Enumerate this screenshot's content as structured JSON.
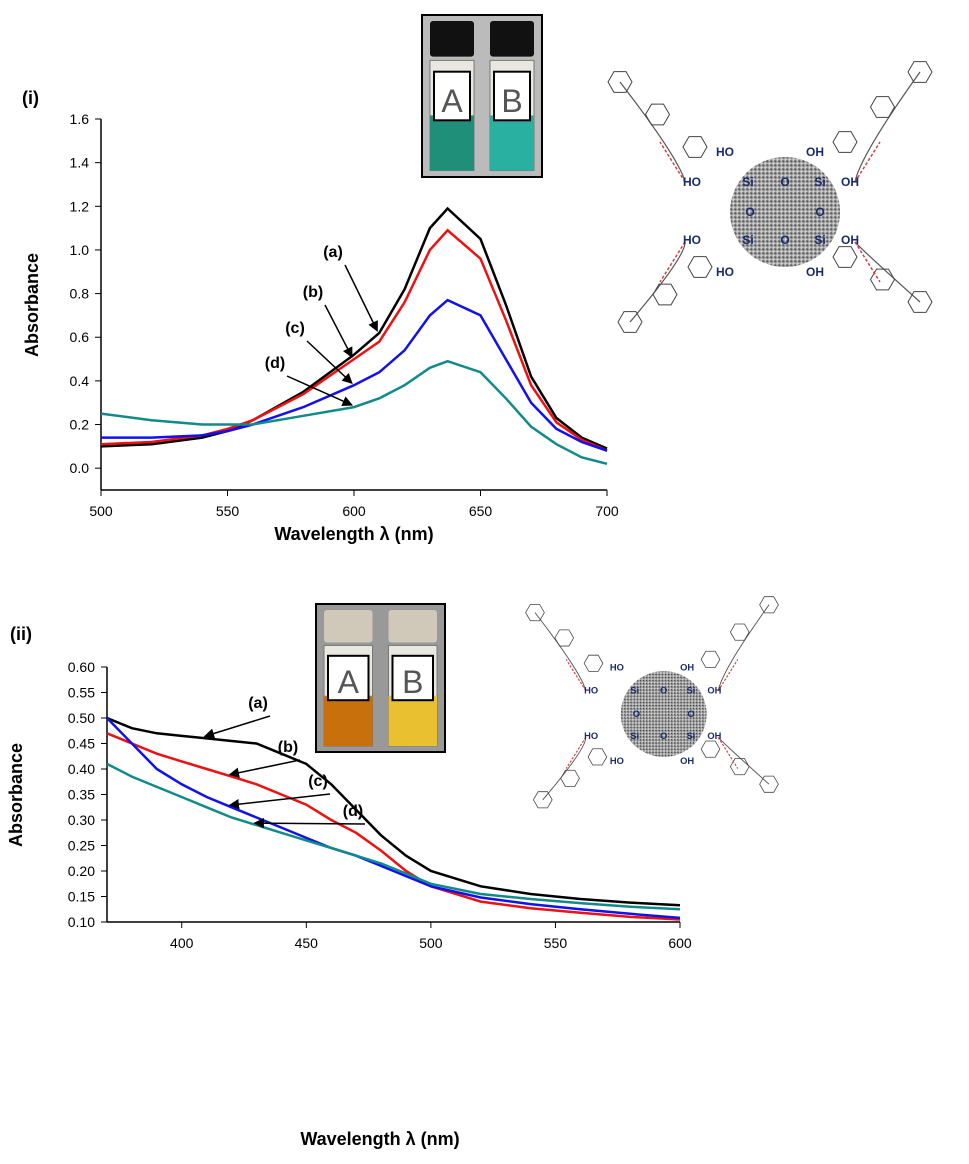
{
  "chart_data": [
    {
      "type": "line",
      "panel_label": "(i)",
      "xlabel": "Wavelength λ (nm)",
      "ylabel": "Absorbance",
      "x": [
        500,
        520,
        540,
        550,
        560,
        580,
        600,
        610,
        620,
        630,
        637,
        650,
        660,
        670,
        680,
        690,
        700
      ],
      "series": [
        {
          "name": "(a)",
          "color": "#000000",
          "values": [
            0.1,
            0.11,
            0.14,
            0.17,
            0.22,
            0.35,
            0.52,
            0.62,
            0.82,
            1.1,
            1.19,
            1.05,
            0.75,
            0.42,
            0.23,
            0.14,
            0.09
          ]
        },
        {
          "name": "(b)",
          "color": "#ee1111",
          "values": [
            0.11,
            0.12,
            0.15,
            0.18,
            0.22,
            0.34,
            0.5,
            0.58,
            0.76,
            1.0,
            1.09,
            0.96,
            0.68,
            0.38,
            0.21,
            0.13,
            0.08
          ]
        },
        {
          "name": "(c)",
          "color": "#1111ee",
          "values": [
            0.14,
            0.14,
            0.15,
            0.17,
            0.2,
            0.28,
            0.38,
            0.44,
            0.54,
            0.7,
            0.77,
            0.7,
            0.5,
            0.3,
            0.18,
            0.12,
            0.08
          ]
        },
        {
          "name": "(d)",
          "color": "#138a8a",
          "values": [
            0.25,
            0.22,
            0.2,
            0.2,
            0.2,
            0.24,
            0.28,
            0.32,
            0.38,
            0.46,
            0.49,
            0.44,
            0.32,
            0.19,
            0.11,
            0.05,
            0.02
          ]
        }
      ],
      "xlim": [
        500,
        700
      ],
      "xticks": [
        500,
        550,
        600,
        650,
        700
      ],
      "ylim": [
        -0.1,
        1.6
      ],
      "yticks": [
        {
          "value": 0,
          "label": "0.0"
        },
        {
          "value": 0.2,
          "label": "0.2"
        },
        {
          "value": 0.4,
          "label": "0.4"
        },
        {
          "value": 0.6,
          "label": "0.6"
        },
        {
          "value": 0.8,
          "label": "0.8"
        },
        {
          "value": 1.0,
          "label": "1.0"
        },
        {
          "value": 1.2,
          "label": "1.2"
        },
        {
          "value": 1.4,
          "label": "1.4"
        },
        {
          "value": 1.6,
          "label": "1.6"
        }
      ],
      "inset_labels": [
        "A",
        "B"
      ],
      "structure_labels": [
        "HO",
        "OH",
        "HO",
        "Si",
        "O",
        "Si",
        "OH",
        "O",
        "O",
        "HO",
        "Si",
        "O",
        "Si",
        "OH",
        "HO",
        "OH"
      ]
    },
    {
      "type": "line",
      "panel_label": "(ii)",
      "xlabel": "Wavelength λ (nm)",
      "ylabel": "Absorbance",
      "x": [
        370,
        380,
        390,
        400,
        410,
        420,
        430,
        440,
        450,
        460,
        470,
        480,
        490,
        500,
        520,
        540,
        560,
        580,
        600
      ],
      "series": [
        {
          "name": "(a)",
          "color": "#000000",
          "values": [
            0.5,
            0.48,
            0.47,
            0.465,
            0.46,
            0.455,
            0.45,
            0.43,
            0.41,
            0.37,
            0.32,
            0.27,
            0.23,
            0.2,
            0.17,
            0.155,
            0.145,
            0.138,
            0.133
          ]
        },
        {
          "name": "(b)",
          "color": "#ee1111",
          "values": [
            0.47,
            0.45,
            0.43,
            0.415,
            0.4,
            0.385,
            0.37,
            0.35,
            0.33,
            0.3,
            0.275,
            0.24,
            0.2,
            0.17,
            0.14,
            0.127,
            0.118,
            0.11,
            0.105
          ]
        },
        {
          "name": "(c)",
          "color": "#1111ee",
          "values": [
            0.5,
            0.45,
            0.4,
            0.37,
            0.345,
            0.325,
            0.305,
            0.285,
            0.265,
            0.245,
            0.23,
            0.21,
            0.19,
            0.17,
            0.148,
            0.135,
            0.125,
            0.116,
            0.108
          ]
        },
        {
          "name": "(d)",
          "color": "#138a8a",
          "values": [
            0.41,
            0.385,
            0.365,
            0.345,
            0.325,
            0.305,
            0.29,
            0.275,
            0.26,
            0.245,
            0.23,
            0.215,
            0.195,
            0.175,
            0.155,
            0.145,
            0.137,
            0.13,
            0.125
          ]
        }
      ],
      "xlim": [
        370,
        600
      ],
      "xticks": [
        400,
        450,
        500,
        550,
        600
      ],
      "ylim": [
        0.1,
        0.6
      ],
      "yticks": [
        {
          "value": 0.1,
          "label": "0.10"
        },
        {
          "value": 0.15,
          "label": "0.15"
        },
        {
          "value": 0.2,
          "label": "0.20"
        },
        {
          "value": 0.25,
          "label": "0.25"
        },
        {
          "value": 0.3,
          "label": "0.30"
        },
        {
          "value": 0.35,
          "label": "0.35"
        },
        {
          "value": 0.4,
          "label": "0.40"
        },
        {
          "value": 0.45,
          "label": "0.45"
        },
        {
          "value": 0.5,
          "label": "0.50"
        },
        {
          "value": 0.55,
          "label": "0.55"
        },
        {
          "value": 0.6,
          "label": "0.60"
        }
      ],
      "inset_labels": [
        "A",
        "B"
      ],
      "structure_labels": [
        "HO",
        "OH",
        "HO",
        "Si",
        "O",
        "Si",
        "OH",
        "O",
        "O",
        "HO",
        "Si",
        "O",
        "Si",
        "OH",
        "HO",
        "OH"
      ]
    }
  ]
}
